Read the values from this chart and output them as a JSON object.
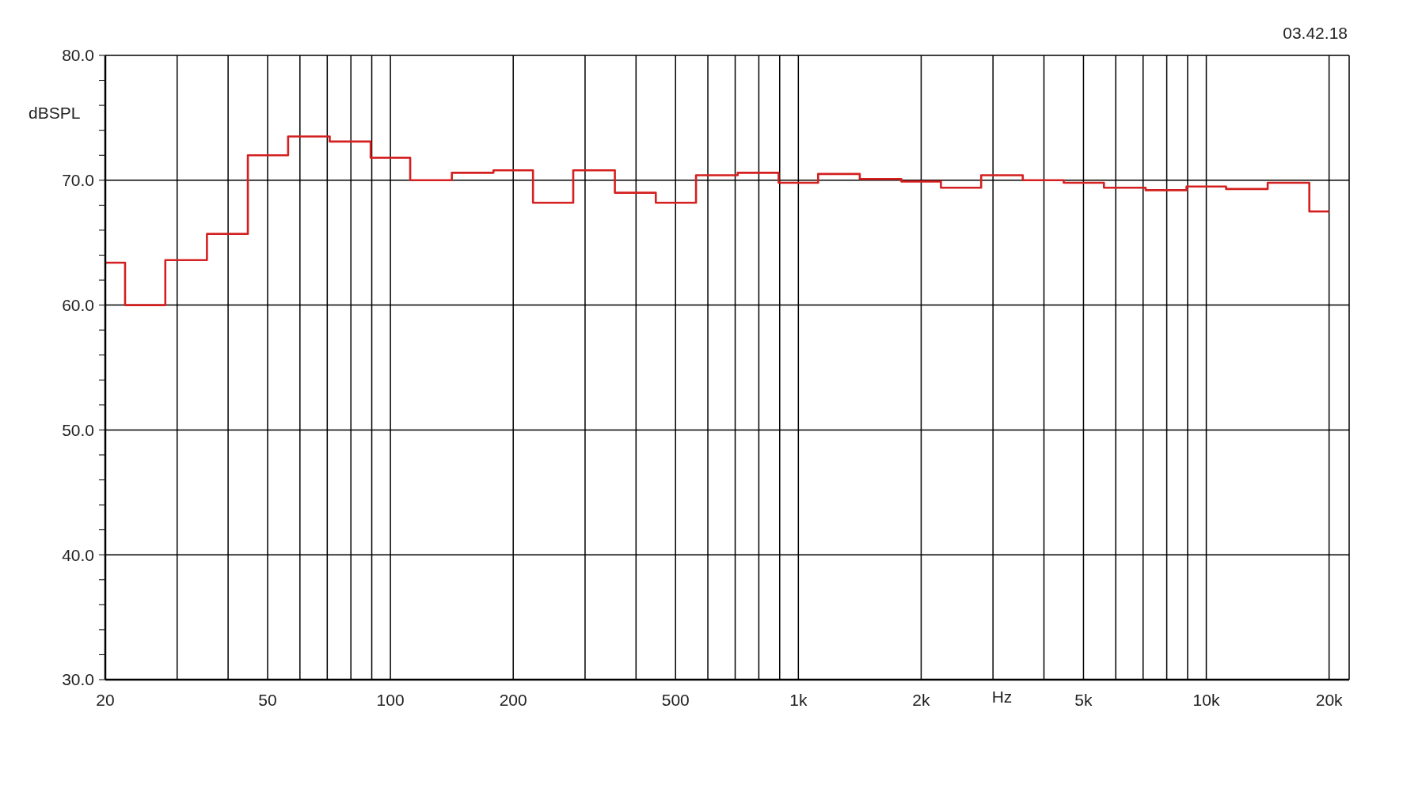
{
  "chart_data": {
    "type": "step",
    "xlabel": "Hz",
    "ylabel": "dBSPL",
    "annotations": [
      "03.42.18"
    ],
    "x": [
      20,
      25,
      31.5,
      40,
      50,
      63,
      80,
      100,
      125,
      160,
      200,
      250,
      315,
      400,
      500,
      630,
      800,
      1000,
      1250,
      1600,
      2000,
      2500,
      3150,
      4000,
      5000,
      6300,
      8000,
      10000,
      12500,
      16000,
      20000
    ],
    "series": [
      {
        "color": "#d42020",
        "values": [
          63.4,
          60.0,
          63.6,
          65.7,
          72.0,
          73.5,
          73.1,
          71.8,
          70.0,
          70.6,
          70.8,
          68.2,
          70.8,
          69.0,
          68.2,
          70.4,
          70.6,
          69.8,
          70.5,
          70.1,
          69.9,
          69.4,
          70.4,
          70.0,
          69.8,
          69.4,
          69.2,
          69.5,
          69.3,
          69.8,
          67.5
        ]
      }
    ],
    "log": "x",
    "xlim": [
      20,
      22400
    ],
    "ylim": [
      30,
      80
    ],
    "xticks": [
      {
        "value": 20,
        "label": "20"
      },
      {
        "value": 30,
        "label": null
      },
      {
        "value": 40,
        "label": null
      },
      {
        "value": 50,
        "label": "50"
      },
      {
        "value": 60,
        "label": null
      },
      {
        "value": 70,
        "label": null
      },
      {
        "value": 80,
        "label": null
      },
      {
        "value": 90,
        "label": null
      },
      {
        "value": 100,
        "label": "100"
      },
      {
        "value": 200,
        "label": "200"
      },
      {
        "value": 300,
        "label": null
      },
      {
        "value": 400,
        "label": null
      },
      {
        "value": 500,
        "label": "500"
      },
      {
        "value": 600,
        "label": null
      },
      {
        "value": 700,
        "label": null
      },
      {
        "value": 800,
        "label": null
      },
      {
        "value": 900,
        "label": null
      },
      {
        "value": 1000,
        "label": "1k"
      },
      {
        "value": 2000,
        "label": "2k"
      },
      {
        "value": 3000,
        "label": null
      },
      {
        "value": 4000,
        "label": null
      },
      {
        "value": 5000,
        "label": "5k"
      },
      {
        "value": 6000,
        "label": null
      },
      {
        "value": 7000,
        "label": null
      },
      {
        "value": 8000,
        "label": null
      },
      {
        "value": 9000,
        "label": null
      },
      {
        "value": 10000,
        "label": "10k"
      },
      {
        "value": 20000,
        "label": "20k"
      }
    ],
    "yticks": [
      {
        "value": 30,
        "label": "30.0"
      },
      {
        "value": 32,
        "label": null
      },
      {
        "value": 34,
        "label": null
      },
      {
        "value": 36,
        "label": null
      },
      {
        "value": 38,
        "label": null
      },
      {
        "value": 40,
        "label": "40.0"
      },
      {
        "value": 42,
        "label": null
      },
      {
        "value": 44,
        "label": null
      },
      {
        "value": 46,
        "label": null
      },
      {
        "value": 48,
        "label": null
      },
      {
        "value": 50,
        "label": "50.0"
      },
      {
        "value": 52,
        "label": null
      },
      {
        "value": 54,
        "label": null
      },
      {
        "value": 56,
        "label": null
      },
      {
        "value": 58,
        "label": null
      },
      {
        "value": 60,
        "label": "60.0"
      },
      {
        "value": 62,
        "label": null
      },
      {
        "value": 64,
        "label": null
      },
      {
        "value": 66,
        "label": null
      },
      {
        "value": 68,
        "label": null
      },
      {
        "value": 70,
        "label": "70.0"
      },
      {
        "value": 72,
        "label": null
      },
      {
        "value": 74,
        "label": null
      },
      {
        "value": 76,
        "label": null
      },
      {
        "value": 78,
        "label": null
      },
      {
        "value": 80,
        "label": "80.0"
      }
    ],
    "grid": true,
    "legend": false,
    "marker": "none",
    "line_style": "solid"
  }
}
